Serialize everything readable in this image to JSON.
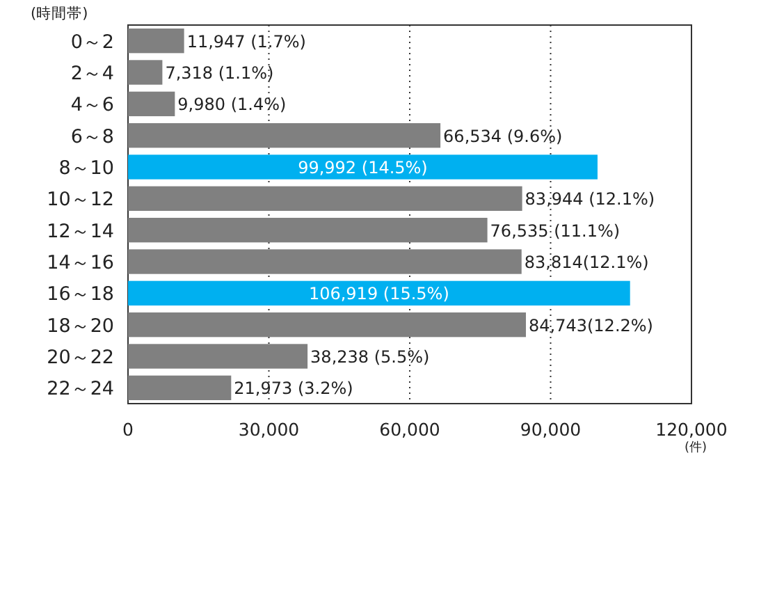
{
  "chart_data": {
    "type": "bar",
    "orientation": "horizontal",
    "ylabel": "(時間帯)",
    "xlabel": "(件)",
    "categories": [
      "0～2",
      "2～4",
      "4～6",
      "6～8",
      "8～10",
      "10～12",
      "12～14",
      "14～16",
      "16～18",
      "18～20",
      "20～22",
      "22～24"
    ],
    "values": [
      11947,
      7318,
      9980,
      66534,
      99992,
      83944,
      76535,
      83814,
      106919,
      84743,
      38238,
      21973
    ],
    "colors": [
      "#808080",
      "#808080",
      "#808080",
      "#808080",
      "#00b0f0",
      "#808080",
      "#808080",
      "#808080",
      "#00b0f0",
      "#808080",
      "#808080",
      "#808080"
    ],
    "value_labels": [
      "11,947 (1.7%)",
      "7,318 (1.1%)",
      "9,980 (1.4%)",
      "66,534 (9.6%)",
      "99,992 (14.5%)",
      "83,944 (12.1%)",
      "76,535 (11.1%)",
      "83,814(12.1%)",
      "106,919 (15.5%)",
      "84,743(12.2%)",
      "38,238 (5.5%)",
      "21,973 (3.2%)"
    ],
    "xlim": [
      0,
      120000
    ],
    "xticks": [
      0,
      {
        "value": 30000,
        "label": "30,000"
      },
      {
        "value": 60000,
        "label": "60,000"
      },
      {
        "value": 90000,
        "label": "90,000"
      },
      {
        "value": 120000,
        "label": "120,000"
      }
    ],
    "grid": "x"
  }
}
